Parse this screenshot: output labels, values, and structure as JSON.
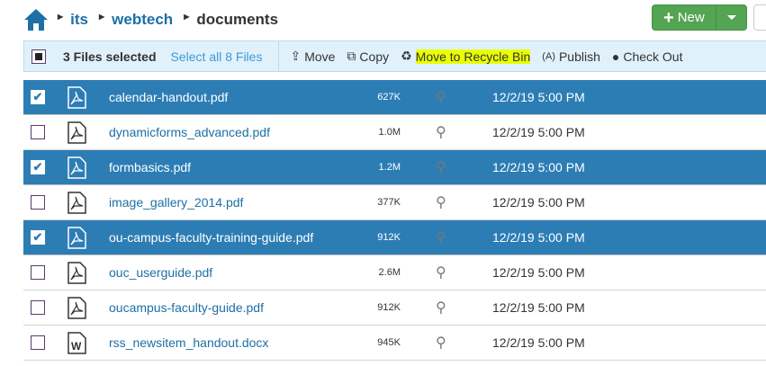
{
  "breadcrumb": {
    "items": [
      "its",
      "webtech"
    ],
    "current": "documents"
  },
  "new_button": {
    "label": "New",
    "plus": "+"
  },
  "toolbar": {
    "selected_count": "3 Files selected",
    "select_all": "Select all 8 Files",
    "actions": [
      {
        "label": "Move",
        "icon": "share-icon"
      },
      {
        "label": "Copy",
        "icon": "copy-icon"
      },
      {
        "label": "Move to Recycle Bin",
        "icon": "recycle-icon",
        "highlight": "#eaff00"
      },
      {
        "label": "Publish",
        "icon": "broadcast-icon"
      },
      {
        "label": "Check Out",
        "icon": "lightbulb-icon"
      }
    ]
  },
  "colors": {
    "selected_row": "#2d7db5",
    "link": "#1d6fa5",
    "new_button": "#53a553"
  },
  "files": [
    {
      "name": "calendar-handout.pdf",
      "size": "627K",
      "date": "12/2/19 5:00 PM",
      "type": "pdf",
      "selected": true
    },
    {
      "name": "dynamicforms_advanced.pdf",
      "size": "1.0M",
      "date": "12/2/19 5:00 PM",
      "type": "pdf",
      "selected": false
    },
    {
      "name": "formbasics.pdf",
      "size": "1.2M",
      "date": "12/2/19 5:00 PM",
      "type": "pdf",
      "selected": true
    },
    {
      "name": "image_gallery_2014.pdf",
      "size": "377K",
      "date": "12/2/19 5:00 PM",
      "type": "pdf",
      "selected": false
    },
    {
      "name": "ou-campus-faculty-training-guide.pdf",
      "size": "912K",
      "date": "12/2/19 5:00 PM",
      "type": "pdf",
      "selected": true
    },
    {
      "name": "ouc_userguide.pdf",
      "size": "2.6M",
      "date": "12/2/19 5:00 PM",
      "type": "pdf",
      "selected": false
    },
    {
      "name": "oucampus-faculty-guide.pdf",
      "size": "912K",
      "date": "12/2/19 5:00 PM",
      "type": "pdf",
      "selected": false
    },
    {
      "name": "rss_newsitem_handout.docx",
      "size": "945K",
      "date": "12/2/19 5:00 PM",
      "type": "docx",
      "selected": false
    }
  ]
}
